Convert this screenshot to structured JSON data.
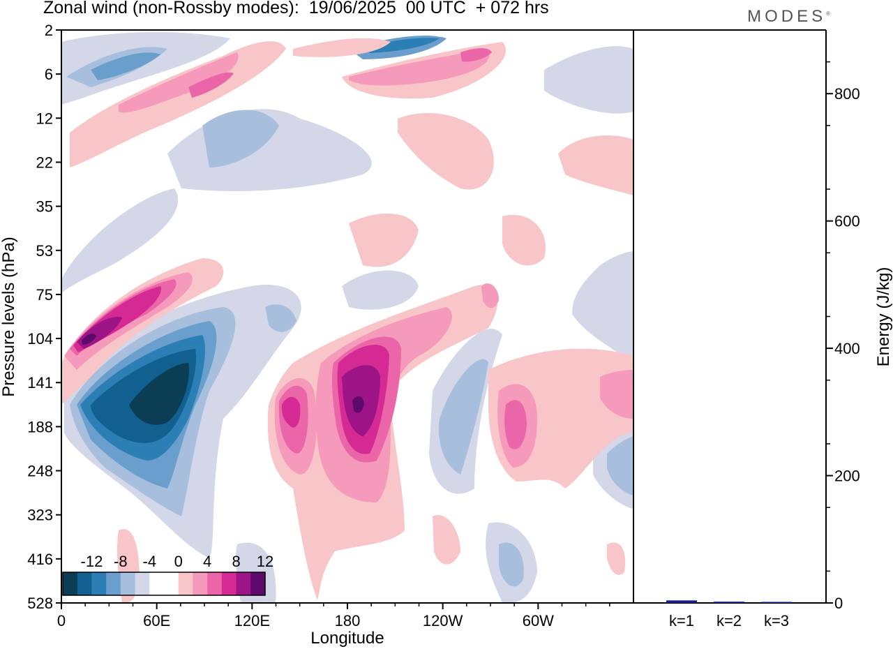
{
  "title": "Zonal wind (non-Rossby modes):  19/06/2025  00 UTC  + 072 hrs",
  "logo": "MODES",
  "chart_data": [
    {
      "type": "heatmap",
      "xlabel": "Longitude",
      "ylabel": "Pressure levels (hPa)",
      "x_ticks": [
        "0",
        "60E",
        "120E",
        "180",
        "120W",
        "60W"
      ],
      "x_tick_values": [
        0,
        60,
        120,
        180,
        240,
        300
      ],
      "x_range": [
        0,
        360
      ],
      "y_ticks": [
        "2",
        "6",
        "12",
        "22",
        "35",
        "53",
        "75",
        "104",
        "141",
        "188",
        "248",
        "323",
        "416",
        "528"
      ],
      "colorbar": {
        "labels": [
          "-12",
          "-8",
          "-4",
          "0",
          "4",
          "8",
          "12"
        ],
        "colors": [
          "#0b3d55",
          "#11608f",
          "#2b7fb5",
          "#6a9fcd",
          "#a7bfdd",
          "#d3d7e8",
          "#ffffff",
          "#ffffff",
          "#f8c5c8",
          "#f59abb",
          "#ea66a8",
          "#d52a93",
          "#9c1486",
          "#5e0a6c"
        ]
      },
      "features": [
        {
          "value": -14,
          "lon": 70,
          "level": "141"
        },
        {
          "value": 11,
          "lon": 15,
          "level": "104"
        },
        {
          "value": 13,
          "lon": 182,
          "level": "141"
        },
        {
          "value": 8,
          "lon": 145,
          "level": "141"
        },
        {
          "value": -8,
          "lon": 210,
          "level": "2"
        },
        {
          "value": 6,
          "lon": 90,
          "level": "6"
        },
        {
          "value": 6,
          "lon": 285,
          "level": "188"
        },
        {
          "value": -6,
          "lon": 40,
          "level": "6"
        }
      ]
    },
    {
      "type": "bar",
      "ylabel": "Energy (J/kg)",
      "ylim": [
        0,
        900
      ],
      "y_ticks": [
        0,
        200,
        400,
        600,
        800
      ],
      "categories": [
        "k=1",
        "k=2",
        "k=3"
      ],
      "values": [
        4,
        2,
        1
      ],
      "bar_color": "#1c1c8c"
    }
  ]
}
